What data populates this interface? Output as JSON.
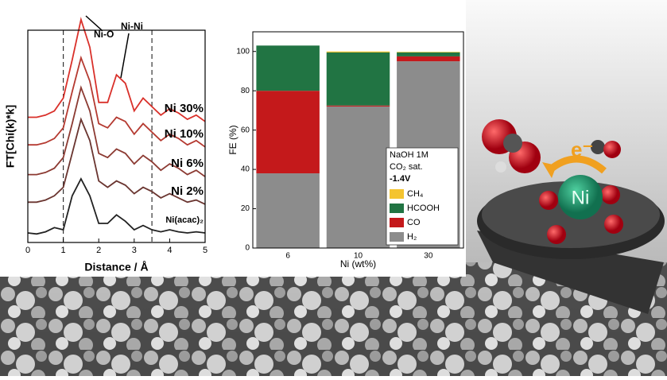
{
  "chart_data": [
    {
      "type": "line",
      "xlabel": "Distance / Å",
      "ylabel": "FT[Chi(k)*k]",
      "x": [
        0,
        0.25,
        0.5,
        0.75,
        1,
        1.25,
        1.5,
        1.75,
        2,
        2.25,
        2.5,
        2.75,
        3,
        3.25,
        3.5,
        3.75,
        4,
        4.25,
        4.5,
        4.75,
        5
      ],
      "xlim": [
        0,
        5
      ],
      "xticks": [
        0,
        1,
        2,
        3,
        4,
        5
      ],
      "ylim": [
        0,
        10
      ],
      "vlines": [
        1,
        3.5
      ],
      "annotations": [
        "Ni-O",
        "Ni-Ni"
      ],
      "series": [
        {
          "name": "Ni 30%",
          "color": "#d9302a",
          "values": [
            5.9,
            5.9,
            6.0,
            6.2,
            6.8,
            8.6,
            10.5,
            9.2,
            6.6,
            6.6,
            7.9,
            7.5,
            6.2,
            6.8,
            6.4,
            6.0,
            6.3,
            6.1,
            5.8,
            6.0,
            5.7
          ]
        },
        {
          "name": "Ni 10%",
          "color": "#b53a31",
          "values": [
            4.6,
            4.6,
            4.7,
            4.9,
            5.4,
            7.1,
            8.7,
            7.6,
            5.6,
            5.4,
            5.9,
            5.7,
            5.1,
            5.6,
            5.2,
            4.8,
            5.1,
            4.9,
            4.6,
            4.8,
            4.5
          ]
        },
        {
          "name": "Ni 6%",
          "color": "#8c3a32",
          "values": [
            3.2,
            3.2,
            3.3,
            3.5,
            4.0,
            5.6,
            7.3,
            6.2,
            4.2,
            4.0,
            4.4,
            4.2,
            3.7,
            4.1,
            3.8,
            3.4,
            3.7,
            3.5,
            3.2,
            3.4,
            3.1
          ]
        },
        {
          "name": "Ni 2%",
          "color": "#6a3530",
          "values": [
            1.9,
            1.9,
            2.0,
            2.2,
            2.6,
            4.2,
            5.8,
            4.8,
            2.9,
            2.6,
            2.9,
            2.7,
            2.3,
            2.6,
            2.4,
            2.1,
            2.3,
            2.1,
            1.9,
            2.0,
            1.8
          ]
        },
        {
          "name": "Ni(acac)₂",
          "color": "#222222",
          "values": [
            0.45,
            0.4,
            0.5,
            0.7,
            0.6,
            2.2,
            3.0,
            2.2,
            0.9,
            0.9,
            1.3,
            1.0,
            0.6,
            0.8,
            0.6,
            0.5,
            0.6,
            0.5,
            0.45,
            0.5,
            0.45
          ]
        }
      ]
    },
    {
      "type": "bar",
      "stacked": true,
      "xlabel": "Ni (wt%)",
      "ylabel": "FE (%)",
      "categories": [
        "6",
        "10",
        "30"
      ],
      "ylim": [
        0,
        110
      ],
      "yticks": [
        0,
        20,
        40,
        60,
        80,
        100
      ],
      "legend_title": [
        "NaOH 1M",
        "CO₂ sat.",
        "-1.4V"
      ],
      "series": [
        {
          "name": "H₂",
          "color": "#8c8c8c",
          "values": [
            38,
            72,
            95
          ]
        },
        {
          "name": "CO",
          "color": "#c4191b",
          "values": [
            42,
            0.5,
            2.5
          ]
        },
        {
          "name": "HCOOH",
          "color": "#217443",
          "values": [
            23,
            27,
            2
          ]
        },
        {
          "name": "CH₄",
          "color": "#f4c430",
          "values": [
            0,
            0.5,
            0.3
          ]
        }
      ]
    }
  ],
  "illustration": {
    "electron": "e⁻",
    "metal": "Ni"
  }
}
